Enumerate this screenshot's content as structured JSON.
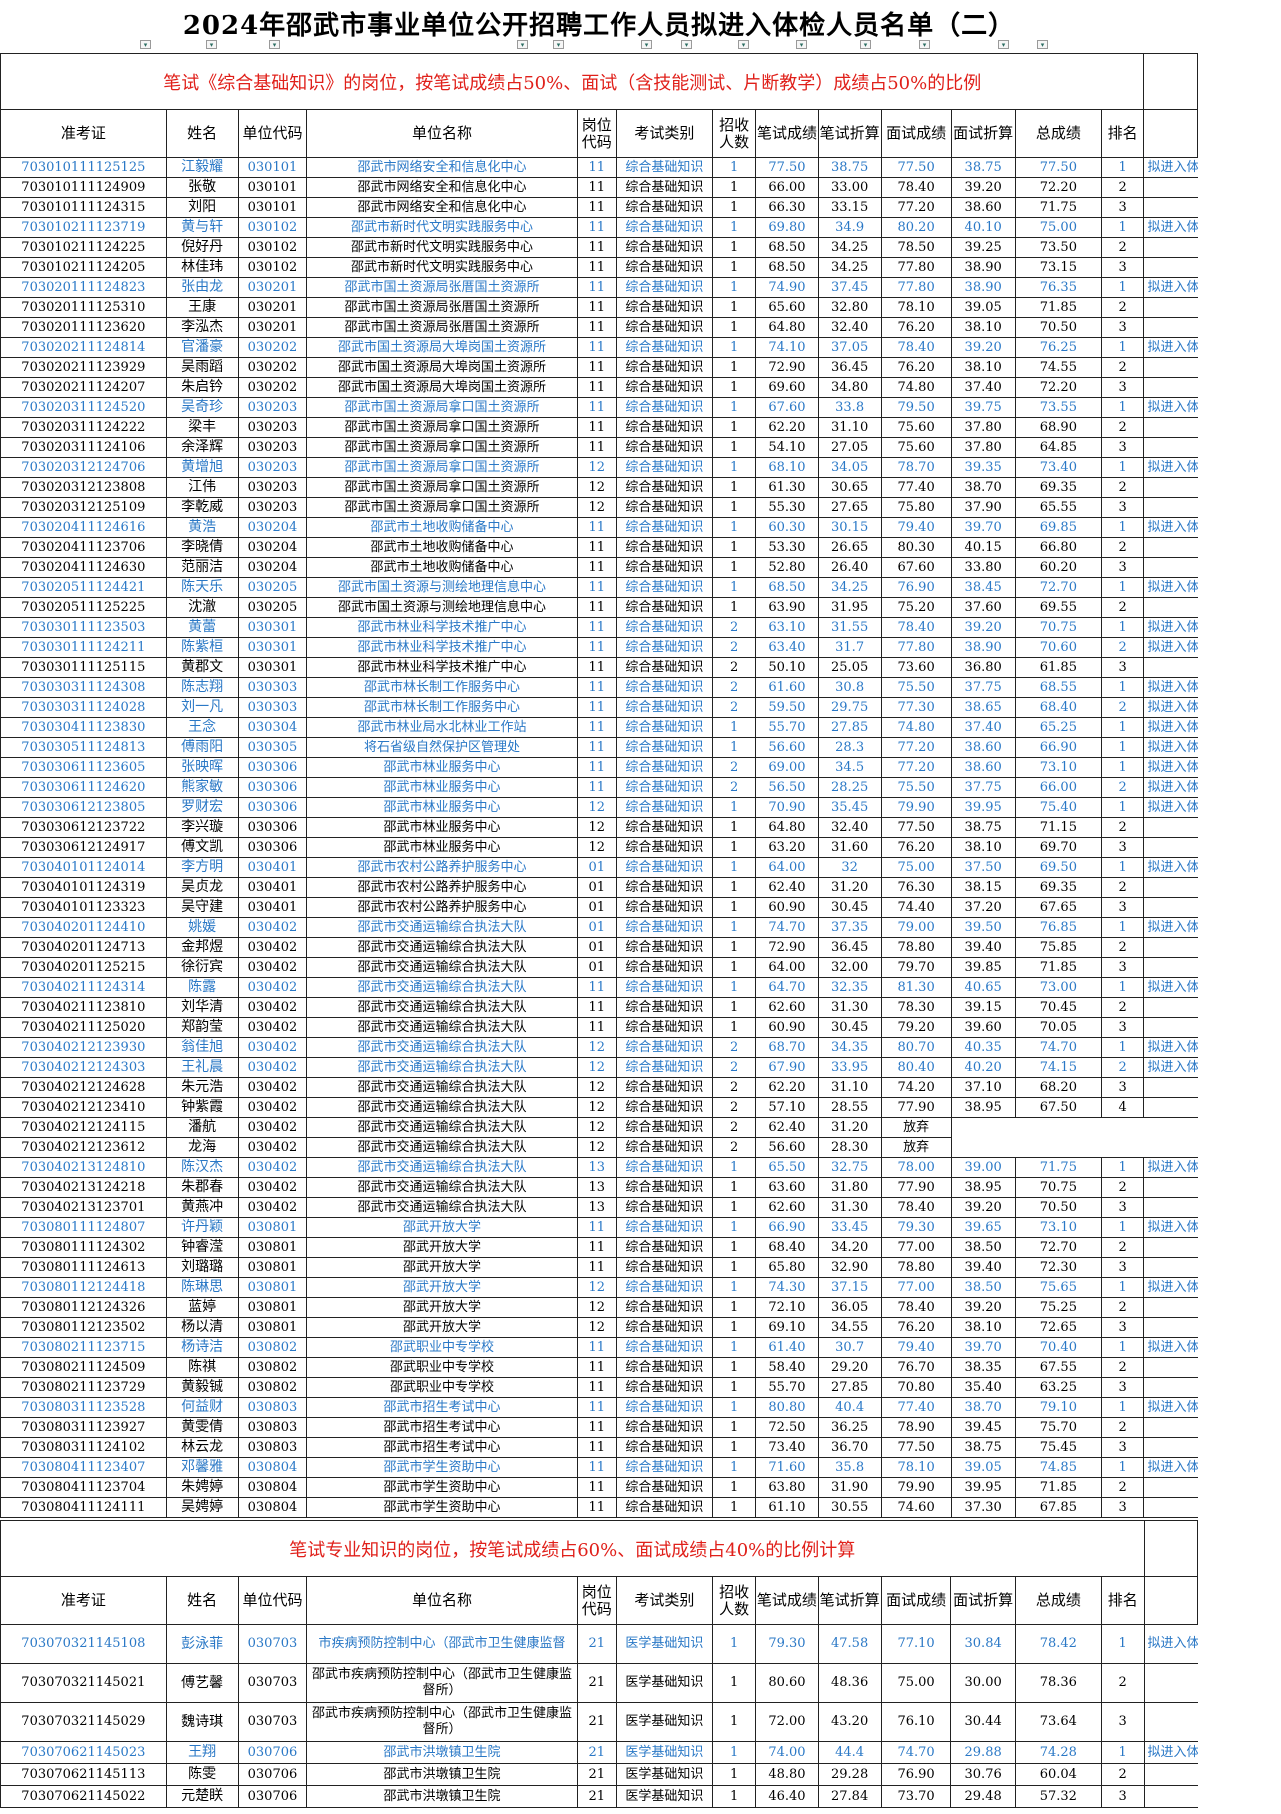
{
  "title": "2024年邵武市事业单位公开招聘工作人员拟进入体检人员名单（二）",
  "section1_heading": "笔试《综合基础知识》的岗位，按笔试成绩占50%、面试（含技能测试、片断教学）成绩占50%的比例",
  "section2_heading": "笔试专业知识的岗位，按笔试成绩占60%、面试成绩占40%的比例计算",
  "columns": [
    "准考证",
    "姓名",
    "单位代码",
    "单位名称",
    "岗位代码",
    "考试类别",
    "招收人数",
    "笔试成绩",
    "笔试折算",
    "面试成绩",
    "面试折算",
    "总成绩",
    "排名",
    ""
  ],
  "colors": {
    "highlight": "#2a78c6",
    "heading": "#e0201a"
  },
  "table1_rows": [
    [
      "703010111125125",
      "江毅耀",
      "030101",
      "邵武市网络安全和信息化中心",
      "11",
      "综合基础知识",
      "1",
      "77.50",
      "38.75",
      "77.50",
      "38.75",
      "77.50",
      "1",
      "拟进入体检"
    ],
    [
      "703010111124909",
      "张敬",
      "030101",
      "邵武市网络安全和信息化中心",
      "11",
      "综合基础知识",
      "1",
      "66.00",
      "33.00",
      "78.40",
      "39.20",
      "72.20",
      "2",
      ""
    ],
    [
      "703010111124315",
      "刘阳",
      "030101",
      "邵武市网络安全和信息化中心",
      "11",
      "综合基础知识",
      "1",
      "66.30",
      "33.15",
      "77.20",
      "38.60",
      "71.75",
      "3",
      ""
    ],
    [
      "703010211123719",
      "黄与轩",
      "030102",
      "邵武市新时代文明实践服务中心",
      "11",
      "综合基础知识",
      "1",
      "69.80",
      "34.9",
      "80.20",
      "40.10",
      "75.00",
      "1",
      "拟进入体检"
    ],
    [
      "703010211124225",
      "倪好丹",
      "030102",
      "邵武市新时代文明实践服务中心",
      "11",
      "综合基础知识",
      "1",
      "68.50",
      "34.25",
      "78.50",
      "39.25",
      "73.50",
      "2",
      ""
    ],
    [
      "703010211124205",
      "林佳玮",
      "030102",
      "邵武市新时代文明实践服务中心",
      "11",
      "综合基础知识",
      "1",
      "68.50",
      "34.25",
      "77.80",
      "38.90",
      "73.15",
      "3",
      ""
    ],
    [
      "703020111124823",
      "张由龙",
      "030201",
      "邵武市国土资源局张厝国土资源所",
      "11",
      "综合基础知识",
      "1",
      "74.90",
      "37.45",
      "77.80",
      "38.90",
      "76.35",
      "1",
      "拟进入体检"
    ],
    [
      "703020111125310",
      "王康",
      "030201",
      "邵武市国土资源局张厝国土资源所",
      "11",
      "综合基础知识",
      "1",
      "65.60",
      "32.80",
      "78.10",
      "39.05",
      "71.85",
      "2",
      ""
    ],
    [
      "703020111123620",
      "李泓杰",
      "030201",
      "邵武市国土资源局张厝国土资源所",
      "11",
      "综合基础知识",
      "1",
      "64.80",
      "32.40",
      "76.20",
      "38.10",
      "70.50",
      "3",
      ""
    ],
    [
      "703020211124814",
      "官潘豪",
      "030202",
      "邵武市国土资源局大埠岗国土资源所",
      "11",
      "综合基础知识",
      "1",
      "74.10",
      "37.05",
      "78.40",
      "39.20",
      "76.25",
      "1",
      "拟进入体检"
    ],
    [
      "703020211123929",
      "吴雨蹈",
      "030202",
      "邵武市国土资源局大埠岗国土资源所",
      "11",
      "综合基础知识",
      "1",
      "72.90",
      "36.45",
      "76.20",
      "38.10",
      "74.55",
      "2",
      ""
    ],
    [
      "703020211124207",
      "朱启钤",
      "030202",
      "邵武市国土资源局大埠岗国土资源所",
      "11",
      "综合基础知识",
      "1",
      "69.60",
      "34.80",
      "74.80",
      "37.40",
      "72.20",
      "3",
      ""
    ],
    [
      "703020311124520",
      "吴奇珍",
      "030203",
      "邵武市国土资源局拿口国土资源所",
      "11",
      "综合基础知识",
      "1",
      "67.60",
      "33.8",
      "79.50",
      "39.75",
      "73.55",
      "1",
      "拟进入体检"
    ],
    [
      "703020311124222",
      "梁丰",
      "030203",
      "邵武市国土资源局拿口国土资源所",
      "11",
      "综合基础知识",
      "1",
      "62.20",
      "31.10",
      "75.60",
      "37.80",
      "68.90",
      "2",
      ""
    ],
    [
      "703020311124106",
      "余泽辉",
      "030203",
      "邵武市国土资源局拿口国土资源所",
      "11",
      "综合基础知识",
      "1",
      "54.10",
      "27.05",
      "75.60",
      "37.80",
      "64.85",
      "3",
      ""
    ],
    [
      "703020312124706",
      "黄增旭",
      "030203",
      "邵武市国土资源局拿口国土资源所",
      "12",
      "综合基础知识",
      "1",
      "68.10",
      "34.05",
      "78.70",
      "39.35",
      "73.40",
      "1",
      "拟进入体检"
    ],
    [
      "703020312123808",
      "江伟",
      "030203",
      "邵武市国土资源局拿口国土资源所",
      "12",
      "综合基础知识",
      "1",
      "61.30",
      "30.65",
      "77.40",
      "38.70",
      "69.35",
      "2",
      ""
    ],
    [
      "703020312125109",
      "李乾威",
      "030203",
      "邵武市国土资源局拿口国土资源所",
      "12",
      "综合基础知识",
      "1",
      "55.30",
      "27.65",
      "75.80",
      "37.90",
      "65.55",
      "3",
      ""
    ],
    [
      "703020411124616",
      "黄浩",
      "030204",
      "邵武市土地收购储备中心",
      "11",
      "综合基础知识",
      "1",
      "60.30",
      "30.15",
      "79.40",
      "39.70",
      "69.85",
      "1",
      "拟进入体检"
    ],
    [
      "703020411123706",
      "李晓倩",
      "030204",
      "邵武市土地收购储备中心",
      "11",
      "综合基础知识",
      "1",
      "53.30",
      "26.65",
      "80.30",
      "40.15",
      "66.80",
      "2",
      ""
    ],
    [
      "703020411124630",
      "范丽洁",
      "030204",
      "邵武市土地收购储备中心",
      "11",
      "综合基础知识",
      "1",
      "52.80",
      "26.40",
      "67.60",
      "33.80",
      "60.20",
      "3",
      ""
    ],
    [
      "703020511124421",
      "陈天乐",
      "030205",
      "邵武市国土资源与测绘地理信息中心",
      "11",
      "综合基础知识",
      "1",
      "68.50",
      "34.25",
      "76.90",
      "38.45",
      "72.70",
      "1",
      "拟进入体检"
    ],
    [
      "703020511125225",
      "沈澈",
      "030205",
      "邵武市国土资源与测绘地理信息中心",
      "11",
      "综合基础知识",
      "1",
      "63.90",
      "31.95",
      "75.20",
      "37.60",
      "69.55",
      "2",
      ""
    ],
    [
      "703030111123503",
      "黄蕾",
      "030301",
      "邵武市林业科学技术推广中心",
      "11",
      "综合基础知识",
      "2",
      "63.10",
      "31.55",
      "78.40",
      "39.20",
      "70.75",
      "1",
      "拟进入体检"
    ],
    [
      "703030111124211",
      "陈紫桓",
      "030301",
      "邵武市林业科学技术推广中心",
      "11",
      "综合基础知识",
      "2",
      "63.40",
      "31.7",
      "77.80",
      "38.90",
      "70.60",
      "2",
      "拟进入体检"
    ],
    [
      "703030111125115",
      "黄郡文",
      "030301",
      "邵武市林业科学技术推广中心",
      "11",
      "综合基础知识",
      "2",
      "50.10",
      "25.05",
      "73.60",
      "36.80",
      "61.85",
      "3",
      ""
    ],
    [
      "703030311124308",
      "陈志翔",
      "030303",
      "邵武市林长制工作服务中心",
      "11",
      "综合基础知识",
      "2",
      "61.60",
      "30.8",
      "75.50",
      "37.75",
      "68.55",
      "1",
      "拟进入体检"
    ],
    [
      "703030311124028",
      "刘一凡",
      "030303",
      "邵武市林长制工作服务中心",
      "11",
      "综合基础知识",
      "2",
      "59.50",
      "29.75",
      "77.30",
      "38.65",
      "68.40",
      "2",
      "拟进入体检"
    ],
    [
      "703030411123830",
      "王念",
      "030304",
      "邵武市林业局水北林业工作站",
      "11",
      "综合基础知识",
      "1",
      "55.70",
      "27.85",
      "74.80",
      "37.40",
      "65.25",
      "1",
      "拟进入体检"
    ],
    [
      "703030511124813",
      "傅雨阳",
      "030305",
      "将石省级自然保护区管理处",
      "11",
      "综合基础知识",
      "1",
      "56.60",
      "28.3",
      "77.20",
      "38.60",
      "66.90",
      "1",
      "拟进入体检"
    ],
    [
      "703030611123605",
      "张映晖",
      "030306",
      "邵武市林业服务中心",
      "11",
      "综合基础知识",
      "2",
      "69.00",
      "34.5",
      "77.20",
      "38.60",
      "73.10",
      "1",
      "拟进入体检"
    ],
    [
      "703030611124620",
      "熊家敏",
      "030306",
      "邵武市林业服务中心",
      "11",
      "综合基础知识",
      "2",
      "56.50",
      "28.25",
      "75.50",
      "37.75",
      "66.00",
      "2",
      "拟进入体检"
    ],
    [
      "703030612123805",
      "罗财宏",
      "030306",
      "邵武市林业服务中心",
      "12",
      "综合基础知识",
      "1",
      "70.90",
      "35.45",
      "79.90",
      "39.95",
      "75.40",
      "1",
      "拟进入体检"
    ],
    [
      "703030612123722",
      "李兴璇",
      "030306",
      "邵武市林业服务中心",
      "12",
      "综合基础知识",
      "1",
      "64.80",
      "32.40",
      "77.50",
      "38.75",
      "71.15",
      "2",
      ""
    ],
    [
      "703030612124917",
      "傅文凯",
      "030306",
      "邵武市林业服务中心",
      "12",
      "综合基础知识",
      "1",
      "63.20",
      "31.60",
      "76.20",
      "38.10",
      "69.70",
      "3",
      ""
    ],
    [
      "703040101124014",
      "李方明",
      "030401",
      "邵武市农村公路养护服务中心",
      "01",
      "综合基础知识",
      "1",
      "64.00",
      "32",
      "75.00",
      "37.50",
      "69.50",
      "1",
      "拟进入体检"
    ],
    [
      "703040101124319",
      "吴贞龙",
      "030401",
      "邵武市农村公路养护服务中心",
      "01",
      "综合基础知识",
      "1",
      "62.40",
      "31.20",
      "76.30",
      "38.15",
      "69.35",
      "2",
      ""
    ],
    [
      "703040101123323",
      "吴守建",
      "030401",
      "邵武市农村公路养护服务中心",
      "01",
      "综合基础知识",
      "1",
      "60.90",
      "30.45",
      "74.40",
      "37.20",
      "67.65",
      "3",
      ""
    ],
    [
      "703040201124410",
      "姚媛",
      "030402",
      "邵武市交通运输综合执法大队",
      "01",
      "综合基础知识",
      "1",
      "74.70",
      "37.35",
      "79.00",
      "39.50",
      "76.85",
      "1",
      "拟进入体检"
    ],
    [
      "703040201124713",
      "金邦煜",
      "030402",
      "邵武市交通运输综合执法大队",
      "01",
      "综合基础知识",
      "1",
      "72.90",
      "36.45",
      "78.80",
      "39.40",
      "75.85",
      "2",
      ""
    ],
    [
      "703040201125215",
      "徐衍宾",
      "030402",
      "邵武市交通运输综合执法大队",
      "01",
      "综合基础知识",
      "1",
      "64.00",
      "32.00",
      "79.70",
      "39.85",
      "71.85",
      "3",
      ""
    ],
    [
      "703040211124314",
      "陈露",
      "030402",
      "邵武市交通运输综合执法大队",
      "11",
      "综合基础知识",
      "1",
      "64.70",
      "32.35",
      "81.30",
      "40.65",
      "73.00",
      "1",
      "拟进入体检"
    ],
    [
      "703040211123810",
      "刘华清",
      "030402",
      "邵武市交通运输综合执法大队",
      "11",
      "综合基础知识",
      "1",
      "62.60",
      "31.30",
      "78.30",
      "39.15",
      "70.45",
      "2",
      ""
    ],
    [
      "703040211125020",
      "郑韵莹",
      "030402",
      "邵武市交通运输综合执法大队",
      "11",
      "综合基础知识",
      "1",
      "60.90",
      "30.45",
      "79.20",
      "39.60",
      "70.05",
      "3",
      ""
    ],
    [
      "703040212123930",
      "翁佳旭",
      "030402",
      "邵武市交通运输综合执法大队",
      "12",
      "综合基础知识",
      "2",
      "68.70",
      "34.35",
      "80.70",
      "40.35",
      "74.70",
      "1",
      "拟进入体检"
    ],
    [
      "703040212124303",
      "王礼晨",
      "030402",
      "邵武市交通运输综合执法大队",
      "12",
      "综合基础知识",
      "2",
      "67.90",
      "33.95",
      "80.40",
      "40.20",
      "74.15",
      "2",
      "拟进入体检"
    ],
    [
      "703040212124628",
      "朱元浩",
      "030402",
      "邵武市交通运输综合执法大队",
      "12",
      "综合基础知识",
      "2",
      "62.20",
      "31.10",
      "74.20",
      "37.10",
      "68.20",
      "3",
      ""
    ],
    [
      "703040212123410",
      "钟紫霞",
      "030402",
      "邵武市交通运输综合执法大队",
      "12",
      "综合基础知识",
      "2",
      "57.10",
      "28.55",
      "77.90",
      "38.95",
      "67.50",
      "4",
      ""
    ],
    [
      "703040212124115",
      "潘航",
      "030402",
      "邵武市交通运输综合执法大队",
      "12",
      "综合基础知识",
      "2",
      "62.40",
      "31.20",
      "放弃"
    ],
    [
      "703040212123612",
      "龙海",
      "030402",
      "邵武市交通运输综合执法大队",
      "12",
      "综合基础知识",
      "2",
      "56.60",
      "28.30",
      "放弃"
    ],
    [
      "703040213124810",
      "陈汉杰",
      "030402",
      "邵武市交通运输综合执法大队",
      "13",
      "综合基础知识",
      "1",
      "65.50",
      "32.75",
      "78.00",
      "39.00",
      "71.75",
      "1",
      "拟进入体检"
    ],
    [
      "703040213124218",
      "朱郡春",
      "030402",
      "邵武市交通运输综合执法大队",
      "13",
      "综合基础知识",
      "1",
      "63.60",
      "31.80",
      "77.90",
      "38.95",
      "70.75",
      "2",
      ""
    ],
    [
      "703040213123701",
      "黄燕冲",
      "030402",
      "邵武市交通运输综合执法大队",
      "13",
      "综合基础知识",
      "1",
      "62.60",
      "31.30",
      "78.40",
      "39.20",
      "70.50",
      "3",
      ""
    ],
    [
      "703080111124807",
      "许丹颖",
      "030801",
      "邵武开放大学",
      "11",
      "综合基础知识",
      "1",
      "66.90",
      "33.45",
      "79.30",
      "39.65",
      "73.10",
      "1",
      "拟进入体检"
    ],
    [
      "703080111124302",
      "钟睿滢",
      "030801",
      "邵武开放大学",
      "11",
      "综合基础知识",
      "1",
      "68.40",
      "34.20",
      "77.00",
      "38.50",
      "72.70",
      "2",
      ""
    ],
    [
      "703080111124613",
      "刘璐璐",
      "030801",
      "邵武开放大学",
      "11",
      "综合基础知识",
      "1",
      "65.80",
      "32.90",
      "78.80",
      "39.40",
      "72.30",
      "3",
      ""
    ],
    [
      "703080112124418",
      "陈琳思",
      "030801",
      "邵武开放大学",
      "12",
      "综合基础知识",
      "1",
      "74.30",
      "37.15",
      "77.00",
      "38.50",
      "75.65",
      "1",
      "拟进入体检"
    ],
    [
      "703080112124326",
      "蓝婷",
      "030801",
      "邵武开放大学",
      "12",
      "综合基础知识",
      "1",
      "72.10",
      "36.05",
      "78.40",
      "39.20",
      "75.25",
      "2",
      ""
    ],
    [
      "703080112123502",
      "杨以清",
      "030801",
      "邵武开放大学",
      "12",
      "综合基础知识",
      "1",
      "69.10",
      "34.55",
      "76.20",
      "38.10",
      "72.65",
      "3",
      ""
    ],
    [
      "703080211123715",
      "杨诗洁",
      "030802",
      "邵武职业中专学校",
      "11",
      "综合基础知识",
      "1",
      "61.40",
      "30.7",
      "79.40",
      "39.70",
      "70.40",
      "1",
      "拟进入体检"
    ],
    [
      "703080211124509",
      "陈祺",
      "030802",
      "邵武职业中专学校",
      "11",
      "综合基础知识",
      "1",
      "58.40",
      "29.20",
      "76.70",
      "38.35",
      "67.55",
      "2",
      ""
    ],
    [
      "703080211123729",
      "黄毅铖",
      "030802",
      "邵武职业中专学校",
      "11",
      "综合基础知识",
      "1",
      "55.70",
      "27.85",
      "70.80",
      "35.40",
      "63.25",
      "3",
      ""
    ],
    [
      "703080311123528",
      "何益财",
      "030803",
      "邵武市招生考试中心",
      "11",
      "综合基础知识",
      "1",
      "80.80",
      "40.4",
      "77.40",
      "38.70",
      "79.10",
      "1",
      "拟进入体检"
    ],
    [
      "703080311123927",
      "黄雯倩",
      "030803",
      "邵武市招生考试中心",
      "11",
      "综合基础知识",
      "1",
      "72.50",
      "36.25",
      "78.90",
      "39.45",
      "75.70",
      "2",
      ""
    ],
    [
      "703080311124102",
      "林云龙",
      "030803",
      "邵武市招生考试中心",
      "11",
      "综合基础知识",
      "1",
      "73.40",
      "36.70",
      "77.50",
      "38.75",
      "75.45",
      "3",
      ""
    ],
    [
      "703080411123407",
      "邓馨雅",
      "030804",
      "邵武市学生资助中心",
      "11",
      "综合基础知识",
      "1",
      "71.60",
      "35.8",
      "78.10",
      "39.05",
      "74.85",
      "1",
      "拟进入体检"
    ],
    [
      "703080411123704",
      "朱娉婷",
      "030804",
      "邵武市学生资助中心",
      "11",
      "综合基础知识",
      "1",
      "63.80",
      "31.90",
      "79.90",
      "39.95",
      "71.85",
      "2",
      ""
    ],
    [
      "703080411124111",
      "吴娉婷",
      "030804",
      "邵武市学生资助中心",
      "11",
      "综合基础知识",
      "1",
      "61.10",
      "30.55",
      "74.60",
      "37.30",
      "67.85",
      "3",
      ""
    ]
  ],
  "table2_rows": [
    [
      "703070321145108",
      "彭泳菲",
      "030703",
      "市疾病预防控制中心（邵武市卫生健康监督",
      "21",
      "医学基础知识",
      "1",
      "79.30",
      "47.58",
      "77.10",
      "30.84",
      "78.42",
      "1",
      "拟进入体检"
    ],
    [
      "703070321145021",
      "傅艺馨",
      "030703",
      "邵武市疾病预防控制中心（邵武市卫生健康监督所）",
      "21",
      "医学基础知识",
      "1",
      "80.60",
      "48.36",
      "75.00",
      "30.00",
      "78.36",
      "2",
      ""
    ],
    [
      "703070321145029",
      "魏诗琪",
      "030703",
      "邵武市疾病预防控制中心（邵武市卫生健康监督所）",
      "21",
      "医学基础知识",
      "1",
      "72.00",
      "43.20",
      "76.10",
      "30.44",
      "73.64",
      "3",
      ""
    ],
    [
      "703070621145023",
      "王翔",
      "030706",
      "邵武市洪墩镇卫生院",
      "21",
      "医学基础知识",
      "1",
      "74.00",
      "44.4",
      "74.70",
      "29.88",
      "74.28",
      "1",
      "拟进入体检"
    ],
    [
      "703070621145113",
      "陈雯",
      "030706",
      "邵武市洪墩镇卫生院",
      "21",
      "医学基础知识",
      "1",
      "48.80",
      "29.28",
      "76.90",
      "30.76",
      "60.04",
      "2",
      ""
    ],
    [
      "703070621145022",
      "元楚眹",
      "030706",
      "邵武市洪墩镇卫生院",
      "21",
      "医学基础知识",
      "1",
      "46.40",
      "27.84",
      "73.70",
      "29.48",
      "57.32",
      "3",
      ""
    ]
  ]
}
